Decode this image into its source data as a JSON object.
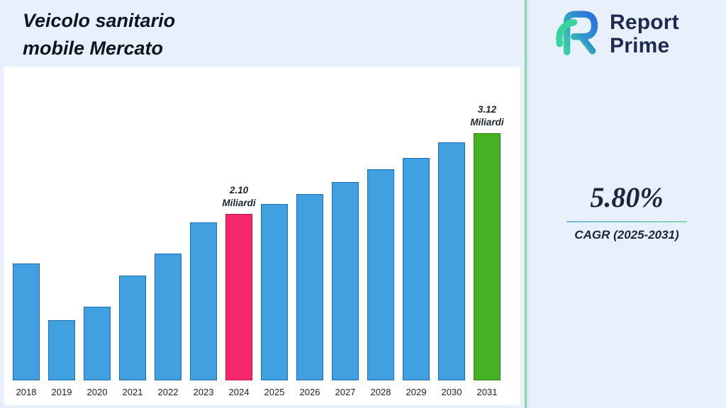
{
  "header": {
    "title": "Veicolo sanitario mobile Mercato",
    "title_lines": [
      "Veicolo sanitario",
      "mobile Mercato"
    ]
  },
  "logo": {
    "name_line1": "Report",
    "name_line2": "Prime",
    "mark_icon": "report-prime-logo",
    "colors": {
      "text": "#1e2a52",
      "gradient_start": "#35d0a5",
      "gradient_end": "#2b6be8"
    }
  },
  "cagr": {
    "value": "5.80%",
    "label": "CAGR (2025-2031)"
  },
  "chart_data": {
    "type": "bar",
    "title": "Veicolo sanitario mobile Mercato",
    "unit": "Miliardi",
    "categories": [
      "2018",
      "2019",
      "2020",
      "2021",
      "2022",
      "2023",
      "2024",
      "2025",
      "2026",
      "2027",
      "2028",
      "2029",
      "2030",
      "2031"
    ],
    "values": [
      1.47,
      0.76,
      0.93,
      1.32,
      1.6,
      1.99,
      2.1,
      2.22,
      2.35,
      2.5,
      2.66,
      2.8,
      3.0,
      3.12
    ],
    "ylim": [
      0,
      3.5
    ],
    "grid": false,
    "legend": "none",
    "colors": {
      "default": "#41a0e0",
      "default_stroke": "#1b6fb0"
    },
    "highlights": [
      {
        "index": 6,
        "year": "2024",
        "color": "#f5286e",
        "stroke": "#c0104e"
      },
      {
        "index": 13,
        "year": "2031",
        "color": "#47b224",
        "stroke": "#2e7d0f"
      }
    ],
    "annotations": [
      {
        "index": 6,
        "lines": [
          "2.10",
          "Miliardi"
        ]
      },
      {
        "index": 13,
        "lines": [
          "3.12",
          "Miliardi"
        ]
      }
    ]
  }
}
